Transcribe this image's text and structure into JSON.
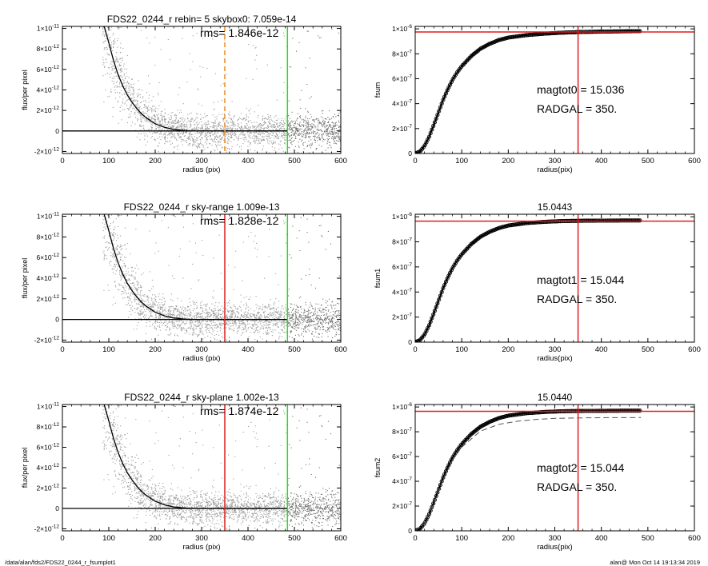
{
  "footer": {
    "path": "/data/alan/fds2/FDS22_0244_r_fsumplot1",
    "stamp": "alan@  Mon Oct 14 19:13:34 2019"
  },
  "colors": {
    "profile_points": "#9a9a9a",
    "profile_points_dark": "#6e6e6e",
    "red_line": "#dd1f1f",
    "green_line": "#22dd22",
    "orange_line": "#f08a1a"
  },
  "chart_data": [
    {
      "id": "profile-0",
      "type": "scatter",
      "title": "FDS22_0244_r rebin= 5    skybox0:  7.059e-14",
      "annotations": [
        "rms= 1.846e-12"
      ],
      "xlabel": "radius (pix)",
      "ylabel": "flux/per pixel",
      "xlim": [
        0,
        600
      ],
      "ylim": [
        -2.2e-12,
        1.02e-11
      ],
      "xticks": [
        0,
        100,
        200,
        300,
        400,
        500,
        600
      ],
      "yticks": [
        {
          "value": -2e-12,
          "mant": "-2×10",
          "exp": "-12"
        },
        {
          "value": 0,
          "mant": "0",
          "exp": ""
        },
        {
          "value": 2e-12,
          "mant": "2×10",
          "exp": "-12"
        },
        {
          "value": 4e-12,
          "mant": "4×10",
          "exp": "-12"
        },
        {
          "value": 6e-12,
          "mant": "6×10",
          "exp": "-12"
        },
        {
          "value": 8e-12,
          "mant": "8×10",
          "exp": "-12"
        },
        {
          "value": 1e-11,
          "mant": "1×10",
          "exp": "-11"
        }
      ],
      "profile": {
        "x": [
          90,
          100,
          110,
          120,
          130,
          140,
          150,
          160,
          170,
          180,
          200,
          220,
          240,
          260,
          280,
          300,
          340,
          380,
          420,
          460,
          485
        ],
        "y": [
          1.02e-11,
          8.6e-12,
          6.9e-12,
          5.5e-12,
          4.4e-12,
          3.5e-12,
          2.8e-12,
          2.2e-12,
          1.7e-12,
          1.3e-12,
          7e-13,
          3.5e-13,
          1.5e-13,
          5e-14,
          0,
          0,
          0,
          0,
          0,
          0,
          0
        ]
      },
      "vlines": [
        {
          "x": 350,
          "color": "orange",
          "style": "dashed"
        },
        {
          "x": 485,
          "color": "green",
          "style": "solid"
        }
      ]
    },
    {
      "id": "profile-1",
      "type": "scatter",
      "title": "FDS22_0244_r sky-range  1.009e-13",
      "annotations": [
        "rms= 1.828e-12"
      ],
      "xlabel": "radius (pix)",
      "ylabel": "flux/per pixel",
      "xlim": [
        0,
        600
      ],
      "ylim": [
        -2.2e-12,
        1.02e-11
      ],
      "xticks": [
        0,
        100,
        200,
        300,
        400,
        500,
        600
      ],
      "yticks": [
        {
          "value": -2e-12,
          "mant": "-2×10",
          "exp": "-12"
        },
        {
          "value": 0,
          "mant": "0",
          "exp": ""
        },
        {
          "value": 2e-12,
          "mant": "2×10",
          "exp": "-12"
        },
        {
          "value": 4e-12,
          "mant": "4×10",
          "exp": "-12"
        },
        {
          "value": 6e-12,
          "mant": "6×10",
          "exp": "-12"
        },
        {
          "value": 8e-12,
          "mant": "8×10",
          "exp": "-12"
        },
        {
          "value": 1e-11,
          "mant": "1×10",
          "exp": "-11"
        }
      ],
      "profile": {
        "x": [
          90,
          100,
          110,
          120,
          130,
          140,
          150,
          160,
          170,
          180,
          200,
          220,
          240,
          260,
          280,
          300,
          340,
          380,
          420,
          460,
          485
        ],
        "y": [
          1.02e-11,
          8.6e-12,
          6.9e-12,
          5.5e-12,
          4.4e-12,
          3.5e-12,
          2.8e-12,
          2.2e-12,
          1.7e-12,
          1.3e-12,
          7e-13,
          3.5e-13,
          1.5e-13,
          5e-14,
          0,
          0,
          0,
          0,
          0,
          0,
          0
        ]
      },
      "vlines": [
        {
          "x": 350,
          "color": "red",
          "style": "solid"
        },
        {
          "x": 485,
          "color": "green",
          "style": "solid"
        }
      ]
    },
    {
      "id": "profile-2",
      "type": "scatter",
      "title": "FDS22_0244_r sky-plane  1.002e-13",
      "annotations": [
        "rms= 1.874e-12"
      ],
      "xlabel": "radius (pix)",
      "ylabel": "flux/per pixel",
      "xlim": [
        0,
        600
      ],
      "ylim": [
        -2.2e-12,
        1.02e-11
      ],
      "xticks": [
        0,
        100,
        200,
        300,
        400,
        500,
        600
      ],
      "yticks": [
        {
          "value": -2e-12,
          "mant": "-2×10",
          "exp": "-12"
        },
        {
          "value": 0,
          "mant": "0",
          "exp": ""
        },
        {
          "value": 2e-12,
          "mant": "2×10",
          "exp": "-12"
        },
        {
          "value": 4e-12,
          "mant": "4×10",
          "exp": "-12"
        },
        {
          "value": 6e-12,
          "mant": "6×10",
          "exp": "-12"
        },
        {
          "value": 8e-12,
          "mant": "8×10",
          "exp": "-12"
        },
        {
          "value": 1e-11,
          "mant": "1×10",
          "exp": "-11"
        }
      ],
      "profile": {
        "x": [
          90,
          100,
          110,
          120,
          130,
          140,
          150,
          160,
          170,
          180,
          200,
          220,
          240,
          260,
          280,
          300,
          340,
          380,
          420,
          460,
          485
        ],
        "y": [
          1.02e-11,
          8.6e-12,
          6.9e-12,
          5.5e-12,
          4.4e-12,
          3.5e-12,
          2.8e-12,
          2.2e-12,
          1.7e-12,
          1.3e-12,
          7e-13,
          3.5e-13,
          1.5e-13,
          5e-14,
          0,
          0,
          0,
          0,
          0,
          0,
          0
        ]
      },
      "vlines": [
        {
          "x": 350,
          "color": "red",
          "style": "solid"
        },
        {
          "x": 485,
          "color": "green",
          "style": "solid"
        }
      ]
    },
    {
      "id": "growth-0",
      "type": "line",
      "title": "",
      "annotations": [
        "magtot0 =  15.036",
        "RADGAL =    350."
      ],
      "xlabel": "radius(pix)",
      "ylabel": "fsum",
      "xlim": [
        0,
        600
      ],
      "ylim": [
        0,
        1.02e-06
      ],
      "xticks": [
        0,
        100,
        200,
        300,
        400,
        500,
        600
      ],
      "yticks": [
        {
          "value": 0,
          "mant": "0",
          "exp": ""
        },
        {
          "value": 2e-07,
          "mant": "2×10",
          "exp": "-7"
        },
        {
          "value": 4e-07,
          "mant": "4×10",
          "exp": "-7"
        },
        {
          "value": 6e-07,
          "mant": "6×10",
          "exp": "-7"
        },
        {
          "value": 8e-07,
          "mant": "8×10",
          "exp": "-7"
        },
        {
          "value": 1e-06,
          "mant": "1×10",
          "exp": "-6"
        }
      ],
      "curve": {
        "x": [
          0,
          10,
          20,
          30,
          40,
          50,
          60,
          70,
          80,
          90,
          100,
          120,
          140,
          160,
          180,
          200,
          240,
          280,
          320,
          360,
          400,
          440,
          485
        ],
        "y": [
          0,
          1.5e-08,
          6e-08,
          1.35e-07,
          2.3e-07,
          3.3e-07,
          4.3e-07,
          5.15e-07,
          5.9e-07,
          6.5e-07,
          7e-07,
          7.8e-07,
          8.4e-07,
          8.8e-07,
          9.1e-07,
          9.3e-07,
          9.5e-07,
          9.62e-07,
          9.7e-07,
          9.75e-07,
          9.78e-07,
          9.8e-07,
          9.82e-07
        ]
      },
      "hline": 9.75e-07,
      "vline": 350
    },
    {
      "id": "growth-1",
      "type": "line",
      "title": "15.0443",
      "annotations": [
        "magtot1 =  15.044",
        "RADGAL =    350."
      ],
      "xlabel": "radius(pix)",
      "ylabel": "fsum1",
      "xlim": [
        0,
        600
      ],
      "ylim": [
        0,
        1.02e-06
      ],
      "xticks": [
        0,
        100,
        200,
        300,
        400,
        500,
        600
      ],
      "yticks": [
        {
          "value": 0,
          "mant": "0",
          "exp": ""
        },
        {
          "value": 2e-07,
          "mant": "2×10",
          "exp": "-7"
        },
        {
          "value": 4e-07,
          "mant": "4×10",
          "exp": "-7"
        },
        {
          "value": 6e-07,
          "mant": "6×10",
          "exp": "-7"
        },
        {
          "value": 8e-07,
          "mant": "8×10",
          "exp": "-7"
        },
        {
          "value": 1e-06,
          "mant": "1×10",
          "exp": "-6"
        }
      ],
      "curve": {
        "x": [
          0,
          10,
          20,
          30,
          40,
          50,
          60,
          70,
          80,
          90,
          100,
          120,
          140,
          160,
          180,
          200,
          240,
          280,
          320,
          360,
          400,
          440,
          485
        ],
        "y": [
          0,
          1.5e-08,
          6e-08,
          1.35e-07,
          2.3e-07,
          3.3e-07,
          4.3e-07,
          5.15e-07,
          5.9e-07,
          6.5e-07,
          7e-07,
          7.8e-07,
          8.4e-07,
          8.8e-07,
          9.1e-07,
          9.3e-07,
          9.5e-07,
          9.6e-07,
          9.66e-07,
          9.68e-07,
          9.69e-07,
          9.7e-07,
          9.7e-07
        ]
      },
      "hline": 9.65e-07,
      "vline": 350
    },
    {
      "id": "growth-2",
      "type": "line",
      "title": "15.0440",
      "annotations": [
        "magtot2 =  15.044",
        "RADGAL =    350."
      ],
      "xlabel": "radius(pix)",
      "ylabel": "fsum2",
      "xlim": [
        0,
        600
      ],
      "ylim": [
        0,
        1.02e-06
      ],
      "xticks": [
        0,
        100,
        200,
        300,
        400,
        500,
        600
      ],
      "yticks": [
        {
          "value": 0,
          "mant": "0",
          "exp": ""
        },
        {
          "value": 2e-07,
          "mant": "2×10",
          "exp": "-7"
        },
        {
          "value": 4e-07,
          "mant": "4×10",
          "exp": "-7"
        },
        {
          "value": 6e-07,
          "mant": "6×10",
          "exp": "-7"
        },
        {
          "value": 8e-07,
          "mant": "8×10",
          "exp": "-7"
        },
        {
          "value": 1e-06,
          "mant": "1×10",
          "exp": "-6"
        }
      ],
      "curve": {
        "x": [
          0,
          10,
          20,
          30,
          40,
          50,
          60,
          70,
          80,
          90,
          100,
          120,
          140,
          160,
          180,
          200,
          240,
          280,
          320,
          360,
          400,
          440,
          485
        ],
        "y": [
          0,
          1.5e-08,
          6e-08,
          1.35e-07,
          2.3e-07,
          3.3e-07,
          4.3e-07,
          5.15e-07,
          5.9e-07,
          6.5e-07,
          7e-07,
          7.8e-07,
          8.4e-07,
          8.8e-07,
          9.1e-07,
          9.3e-07,
          9.5e-07,
          9.6e-07,
          9.66e-07,
          9.68e-07,
          9.69e-07,
          9.7e-07,
          9.7e-07
        ]
      },
      "dashed_curve": {
        "x": [
          0,
          20,
          40,
          60,
          80,
          100,
          140,
          180,
          220,
          260,
          300,
          360,
          420,
          485
        ],
        "y": [
          0,
          5.8e-08,
          2.2e-07,
          4.15e-07,
          5.7e-07,
          6.75e-07,
          8.05e-07,
          8.6e-07,
          8.85e-07,
          9e-07,
          9.08e-07,
          9.12e-07,
          9.14e-07,
          9.15e-07
        ]
      },
      "hline": 9.65e-07,
      "vline": 350
    }
  ]
}
